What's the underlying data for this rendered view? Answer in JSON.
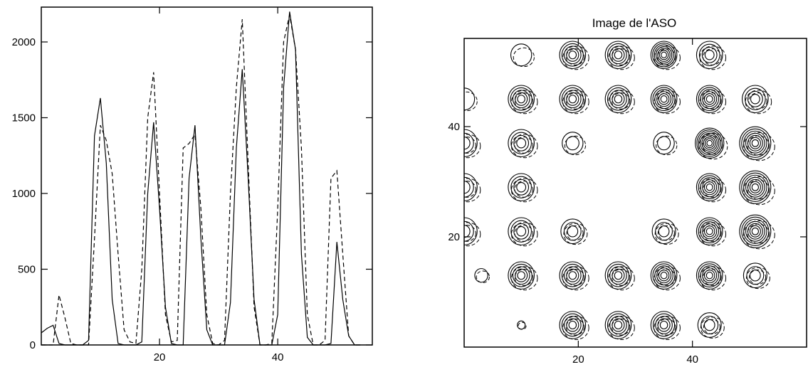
{
  "chart_data": [
    {
      "type": "line",
      "title": "",
      "xlabel": "",
      "ylabel": "",
      "xlim": [
        0,
        56
      ],
      "ylim": [
        0,
        2230
      ],
      "x_ticks": [
        20,
        40
      ],
      "y_ticks": [
        0,
        500,
        1000,
        1500,
        2000
      ],
      "grid": false,
      "series": [
        {
          "style": "solid",
          "points": [
            [
              0,
              80
            ],
            [
              1,
              110
            ],
            [
              2,
              130
            ],
            [
              3,
              10
            ],
            [
              4,
              0
            ],
            [
              5,
              0
            ],
            [
              6,
              0
            ],
            [
              7,
              0
            ],
            [
              8,
              30
            ],
            [
              9,
              1380
            ],
            [
              10,
              1630
            ],
            [
              11,
              1200
            ],
            [
              12,
              300
            ],
            [
              13,
              10
            ],
            [
              14,
              0
            ],
            [
              15,
              0
            ],
            [
              16,
              0
            ],
            [
              17,
              20
            ],
            [
              18,
              1000
            ],
            [
              19,
              1470
            ],
            [
              20,
              900
            ],
            [
              21,
              250
            ],
            [
              22,
              10
            ],
            [
              23,
              0
            ],
            [
              24,
              0
            ],
            [
              25,
              1100
            ],
            [
              26,
              1450
            ],
            [
              27,
              700
            ],
            [
              28,
              100
            ],
            [
              29,
              0
            ],
            [
              30,
              0
            ],
            [
              31,
              0
            ],
            [
              32,
              280
            ],
            [
              33,
              1300
            ],
            [
              34,
              1820
            ],
            [
              35,
              1100
            ],
            [
              36,
              300
            ],
            [
              37,
              0
            ],
            [
              38,
              0
            ],
            [
              39,
              0
            ],
            [
              40,
              200
            ],
            [
              41,
              1700
            ],
            [
              42,
              2200
            ],
            [
              43,
              1950
            ],
            [
              44,
              600
            ],
            [
              45,
              50
            ],
            [
              46,
              0
            ],
            [
              47,
              0
            ],
            [
              48,
              0
            ],
            [
              49,
              10
            ],
            [
              50,
              680
            ],
            [
              51,
              300
            ],
            [
              52,
              60
            ],
            [
              53,
              0
            ],
            [
              54,
              0
            ]
          ]
        },
        {
          "style": "dashed",
          "points": [
            [
              0,
              0
            ],
            [
              1,
              0
            ],
            [
              2,
              0
            ],
            [
              3,
              330
            ],
            [
              4,
              180
            ],
            [
              5,
              10
            ],
            [
              6,
              0
            ],
            [
              7,
              0
            ],
            [
              8,
              0
            ],
            [
              9,
              700
            ],
            [
              10,
              1450
            ],
            [
              11,
              1350
            ],
            [
              12,
              1130
            ],
            [
              13,
              600
            ],
            [
              14,
              100
            ],
            [
              15,
              20
            ],
            [
              16,
              10
            ],
            [
              17,
              500
            ],
            [
              18,
              1500
            ],
            [
              19,
              1800
            ],
            [
              20,
              1000
            ],
            [
              21,
              200
            ],
            [
              22,
              20
            ],
            [
              23,
              30
            ],
            [
              24,
              1300
            ],
            [
              25,
              1330
            ],
            [
              26,
              1390
            ],
            [
              27,
              900
            ],
            [
              28,
              200
            ],
            [
              29,
              10
            ],
            [
              30,
              0
            ],
            [
              31,
              30
            ],
            [
              32,
              1000
            ],
            [
              33,
              1700
            ],
            [
              34,
              2150
            ],
            [
              35,
              1200
            ],
            [
              36,
              250
            ],
            [
              37,
              0
            ],
            [
              38,
              0
            ],
            [
              39,
              10
            ],
            [
              40,
              900
            ],
            [
              41,
              2000
            ],
            [
              42,
              2180
            ],
            [
              43,
              1950
            ],
            [
              44,
              1300
            ],
            [
              45,
              200
            ],
            [
              46,
              0
            ],
            [
              47,
              0
            ],
            [
              48,
              30
            ],
            [
              49,
              1100
            ],
            [
              50,
              1150
            ],
            [
              51,
              600
            ],
            [
              52,
              60
            ],
            [
              53,
              0
            ],
            [
              54,
              0
            ]
          ]
        }
      ]
    },
    {
      "type": "contour",
      "title": "Image de l'ASO",
      "xlabel": "",
      "ylabel": "",
      "xlim": [
        0,
        60
      ],
      "ylim": [
        0,
        56
      ],
      "x_ticks": [
        20,
        40
      ],
      "y_ticks": [
        20,
        40
      ],
      "grid": false,
      "spots": [
        {
          "x": 10,
          "y": 53,
          "levels": 1,
          "spread": 0.8
        },
        {
          "x": 19,
          "y": 53,
          "levels": 5,
          "spread": 1.0
        },
        {
          "x": 27,
          "y": 53,
          "levels": 5,
          "spread": 1.0
        },
        {
          "x": 35,
          "y": 53,
          "levels": 7,
          "spread": 1.0
        },
        {
          "x": 43,
          "y": 53,
          "levels": 4,
          "spread": 1.0
        },
        {
          "x": 0,
          "y": 45,
          "levels": 1,
          "spread": 0.8
        },
        {
          "x": 10,
          "y": 45,
          "levels": 5,
          "spread": 1.0
        },
        {
          "x": 19,
          "y": 45,
          "levels": 5,
          "spread": 1.0
        },
        {
          "x": 27,
          "y": 45,
          "levels": 5,
          "spread": 1.0
        },
        {
          "x": 35,
          "y": 45,
          "levels": 6,
          "spread": 1.0
        },
        {
          "x": 43,
          "y": 45,
          "levels": 6,
          "spread": 1.0
        },
        {
          "x": 51,
          "y": 45,
          "levels": 4,
          "spread": 1.0
        },
        {
          "x": 0,
          "y": 37,
          "levels": 3,
          "spread": 1.0
        },
        {
          "x": 10,
          "y": 37,
          "levels": 4,
          "spread": 1.0
        },
        {
          "x": 19,
          "y": 37,
          "levels": 2,
          "spread": 0.8
        },
        {
          "x": 35,
          "y": 37,
          "levels": 2,
          "spread": 0.8
        },
        {
          "x": 43,
          "y": 37,
          "levels": 8,
          "spread": 1.1
        },
        {
          "x": 51,
          "y": 37,
          "levels": 7,
          "spread": 1.2
        },
        {
          "x": 0,
          "y": 29,
          "levels": 3,
          "spread": 1.0
        },
        {
          "x": 10,
          "y": 29,
          "levels": 4,
          "spread": 1.0
        },
        {
          "x": 43,
          "y": 29,
          "levels": 6,
          "spread": 1.0
        },
        {
          "x": 51,
          "y": 29,
          "levels": 7,
          "spread": 1.2
        },
        {
          "x": 0,
          "y": 21,
          "levels": 3,
          "spread": 1.0
        },
        {
          "x": 10,
          "y": 21,
          "levels": 4,
          "spread": 1.0
        },
        {
          "x": 19,
          "y": 21,
          "levels": 3,
          "spread": 0.9
        },
        {
          "x": 35,
          "y": 21,
          "levels": 3,
          "spread": 0.9
        },
        {
          "x": 43,
          "y": 21,
          "levels": 6,
          "spread": 1.0
        },
        {
          "x": 51,
          "y": 21,
          "levels": 7,
          "spread": 1.2
        },
        {
          "x": 3,
          "y": 13,
          "levels": 1,
          "spread": 0.5
        },
        {
          "x": 10,
          "y": 13,
          "levels": 5,
          "spread": 1.0
        },
        {
          "x": 19,
          "y": 13,
          "levels": 5,
          "spread": 1.0
        },
        {
          "x": 27,
          "y": 13,
          "levels": 5,
          "spread": 1.0
        },
        {
          "x": 35,
          "y": 13,
          "levels": 6,
          "spread": 1.0
        },
        {
          "x": 43,
          "y": 13,
          "levels": 6,
          "spread": 1.0
        },
        {
          "x": 51,
          "y": 13,
          "levels": 3,
          "spread": 0.9
        },
        {
          "x": 10,
          "y": 4,
          "levels": 1,
          "spread": 0.3
        },
        {
          "x": 19,
          "y": 4,
          "levels": 5,
          "spread": 1.0
        },
        {
          "x": 27,
          "y": 4,
          "levels": 5,
          "spread": 1.0
        },
        {
          "x": 35,
          "y": 4,
          "levels": 5,
          "spread": 1.0
        },
        {
          "x": 43,
          "y": 4,
          "levels": 3,
          "spread": 0.9
        }
      ]
    }
  ]
}
